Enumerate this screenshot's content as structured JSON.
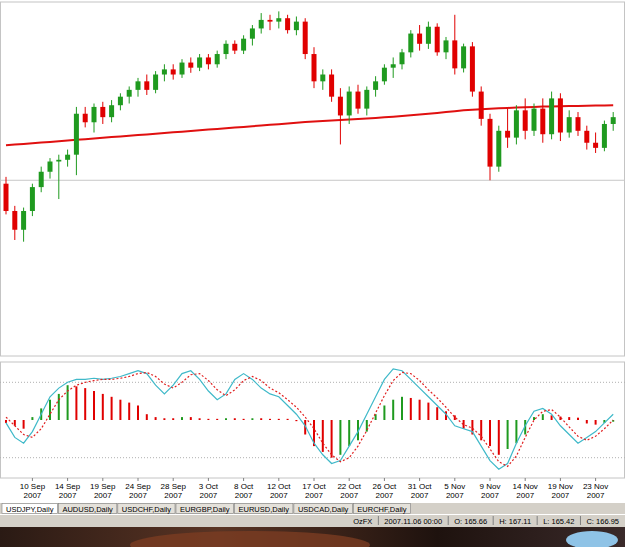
{
  "chart_data": [
    {
      "type": "candlestick",
      "open": [
        158.9,
        157.3,
        156.2,
        157.3,
        158.7,
        159.6,
        160.2,
        160.3,
        160.6,
        163.0,
        162.5,
        163.4,
        162.8,
        163.5,
        164.0,
        164.4,
        164.9,
        164.4,
        165.3,
        165.6,
        165.3,
        166.0,
        165.7,
        166.3,
        165.9,
        166.5,
        167.1,
        166.7,
        167.4,
        168.0,
        168.5,
        168.4,
        168.6,
        167.9,
        168.4,
        166.5,
        164.9,
        165.3,
        164.0,
        162.9,
        164.3,
        163.3,
        164.4,
        164.9,
        165.7,
        165.9,
        166.6,
        167.7,
        167.1,
        168.1,
        166.6,
        167.3,
        165.66,
        166.95,
        164.3,
        162.7,
        159.9,
        162.0,
        161.6,
        163.2,
        162.0,
        163.3,
        161.8,
        163.9,
        161.9,
        162.8,
        162.0,
        161.3,
        161.0,
        162.4
      ],
      "high": [
        159.3,
        157.6,
        157.5,
        158.9,
        159.9,
        160.4,
        160.6,
        160.9,
        163.4,
        163.4,
        163.6,
        163.7,
        163.8,
        164.2,
        164.6,
        165.1,
        165.3,
        165.5,
        165.9,
        165.9,
        166.2,
        166.3,
        166.5,
        166.5,
        166.7,
        167.3,
        167.3,
        167.6,
        168.2,
        168.9,
        168.8,
        169.0,
        168.8,
        168.7,
        168.6,
        166.9,
        165.6,
        165.6,
        164.5,
        164.6,
        164.7,
        164.6,
        165.2,
        165.9,
        166.3,
        166.8,
        167.9,
        168.2,
        168.4,
        168.3,
        167.5,
        168.8,
        167.11,
        167.2,
        164.6,
        163.0,
        162.3,
        163.3,
        163.5,
        163.9,
        163.6,
        163.9,
        164.3,
        164.2,
        163.2,
        163.1,
        162.3,
        161.9,
        162.6,
        163.1
      ],
      "low": [
        157.1,
        155.6,
        155.5,
        157.0,
        158.4,
        159.2,
        158.0,
        159.9,
        159.4,
        162.2,
        161.9,
        162.4,
        162.5,
        163.2,
        163.6,
        164.0,
        164.1,
        164.2,
        164.9,
        165.0,
        165.1,
        165.4,
        165.5,
        165.6,
        165.7,
        166.2,
        166.5,
        166.5,
        167.0,
        167.7,
        167.9,
        168.0,
        167.7,
        167.6,
        166.2,
        164.5,
        164.4,
        163.7,
        161.2,
        162.4,
        163.0,
        162.9,
        164.0,
        164.7,
        165.1,
        165.6,
        166.3,
        166.7,
        166.8,
        166.4,
        166.2,
        165.3,
        165.42,
        164.0,
        162.3,
        159.1,
        159.6,
        161.0,
        161.2,
        161.5,
        161.7,
        161.3,
        161.5,
        161.4,
        161.6,
        161.7,
        160.9,
        160.7,
        160.8,
        162.0
      ],
      "close": [
        157.3,
        156.2,
        157.3,
        158.7,
        159.6,
        160.2,
        160.3,
        160.6,
        163.0,
        162.5,
        163.4,
        162.8,
        163.5,
        164.0,
        164.4,
        164.9,
        164.4,
        165.3,
        165.6,
        165.3,
        166.0,
        165.7,
        166.3,
        165.9,
        166.5,
        167.1,
        166.7,
        167.4,
        168.0,
        168.5,
        168.4,
        168.6,
        167.9,
        168.4,
        166.5,
        164.9,
        165.3,
        164.0,
        162.9,
        164.3,
        163.3,
        164.4,
        164.9,
        165.7,
        165.9,
        166.6,
        167.7,
        167.1,
        168.1,
        166.6,
        167.3,
        165.66,
        166.95,
        164.3,
        162.7,
        159.9,
        162.0,
        161.6,
        163.2,
        162.0,
        163.3,
        161.8,
        163.9,
        161.9,
        162.8,
        162.0,
        161.3,
        161.0,
        162.4,
        162.8
      ],
      "series": [
        {
          "type": "line",
          "color": "#e01010",
          "values": [
            161.15,
            161.19,
            161.23,
            161.27,
            161.31,
            161.35,
            161.39,
            161.43,
            161.47,
            161.51,
            161.55,
            161.59,
            161.63,
            161.67,
            161.71,
            161.75,
            161.79,
            161.83,
            161.87,
            161.91,
            161.95,
            161.99,
            162.03,
            162.07,
            162.11,
            162.15,
            162.19,
            162.23,
            162.27,
            162.31,
            162.35,
            162.39,
            162.43,
            162.47,
            162.51,
            162.54,
            162.57,
            162.6,
            162.63,
            162.66,
            162.69,
            162.72,
            162.75,
            162.79,
            162.83,
            162.87,
            162.91,
            162.95,
            163.0,
            163.05,
            163.1,
            163.15,
            163.2,
            163.24,
            163.27,
            163.3,
            163.32,
            163.34,
            163.36,
            163.38,
            163.4,
            163.42,
            163.43,
            163.44,
            163.45,
            163.46,
            163.47,
            163.48,
            163.49,
            163.5
          ]
        }
      ],
      "level": 159.1,
      "ylim": [
        148.8,
        169.55
      ],
      "tick_labels": false
    },
    {
      "type": "bar",
      "categories": [
        null,
        null,
        null,
        "10 Sep 2007",
        null,
        null,
        null,
        "14 Sep 2007",
        null,
        null,
        null,
        "19 Sep 2007",
        null,
        null,
        null,
        "24 Sep 2007",
        null,
        null,
        null,
        "28 Sep 2007",
        null,
        null,
        null,
        "3 Oct 2007",
        null,
        null,
        null,
        "8 Oct 2007",
        null,
        null,
        null,
        "12 Oct 2007",
        null,
        null,
        null,
        "17 Oct 2007",
        null,
        null,
        null,
        "22 Oct 2007",
        null,
        null,
        null,
        "26 Oct 2007",
        null,
        null,
        null,
        "31 Oct 2007",
        null,
        null,
        null,
        "5 Nov 2007",
        null,
        null,
        null,
        "9 Nov 2007",
        null,
        null,
        null,
        "14 Nov 2007",
        null,
        null,
        null,
        "19 Nov 2007",
        null,
        null,
        null,
        "23 Nov 2007",
        null,
        null
      ],
      "values": [
        -5,
        -10,
        -15,
        5,
        20,
        35,
        45,
        60,
        58,
        55,
        50,
        45,
        40,
        35,
        30,
        25,
        10,
        5,
        3,
        3,
        5,
        5,
        3,
        2,
        2,
        3,
        3,
        2,
        3,
        3,
        2,
        2,
        2,
        -2,
        -25,
        -45,
        -55,
        -65,
        -60,
        -45,
        -35,
        -20,
        10,
        25,
        35,
        40,
        38,
        35,
        30,
        22,
        15,
        8,
        -15,
        -25,
        -35,
        -45,
        -60,
        -50,
        -40,
        -25,
        5,
        10,
        8,
        6,
        5,
        4,
        -6,
        -8,
        -5,
        -3
      ],
      "series": [
        {
          "type": "line",
          "color": "#3fb9c9",
          "line_style": "solid",
          "values": [
            -5,
            -30,
            -40,
            -20,
            10,
            40,
            55,
            65,
            70,
            70,
            72,
            70,
            72,
            75,
            80,
            85,
            80,
            60,
            45,
            60,
            80,
            85,
            70,
            50,
            35,
            45,
            70,
            80,
            70,
            55,
            45,
            40,
            25,
            10,
            -10,
            -40,
            -60,
            -75,
            -70,
            -45,
            -20,
            10,
            40,
            70,
            88,
            85,
            70,
            55,
            40,
            25,
            10,
            -10,
            -15,
            -20,
            -45,
            -70,
            -85,
            -75,
            -40,
            -10,
            15,
            20,
            10,
            -10,
            -25,
            -40,
            -30,
            -20,
            -5,
            10
          ]
        },
        {
          "type": "line",
          "color": "#e02020",
          "line_style": "dotted",
          "values": [
            5,
            -10,
            -25,
            -30,
            -15,
            10,
            35,
            50,
            60,
            65,
            68,
            70,
            70,
            72,
            75,
            80,
            82,
            75,
            62,
            55,
            65,
            78,
            80,
            68,
            52,
            42,
            52,
            68,
            75,
            68,
            55,
            47,
            35,
            22,
            5,
            -15,
            -40,
            -60,
            -72,
            -65,
            -45,
            -18,
            12,
            42,
            68,
            82,
            80,
            68,
            52,
            38,
            22,
            5,
            -8,
            -14,
            -28,
            -50,
            -72,
            -80,
            -62,
            -30,
            0,
            15,
            18,
            5,
            -12,
            -28,
            -35,
            -28,
            -15,
            0
          ]
        }
      ],
      "ylim": [
        -100,
        100
      ],
      "yticks": [
        -65,
        65
      ],
      "tick_labels": "x"
    }
  ],
  "tabs": [
    "USDJPY,Daily",
    "AUDUSD,Daily",
    "USDCHF,Daily",
    "EURGBP,Daily",
    "EURUSD,Daily",
    "USDCAD,Daily",
    "EURCHF,Daily"
  ],
  "status_bar": {
    "profile": "OzFX",
    "time": "2007.11.06 00:00",
    "values": [
      {
        "label": "O:",
        "value": 165.66
      },
      {
        "label": "H:",
        "value": 167.11
      },
      {
        "label": "L:",
        "value": 165.42
      },
      {
        "label": "C:",
        "value": 166.95
      }
    ]
  }
}
